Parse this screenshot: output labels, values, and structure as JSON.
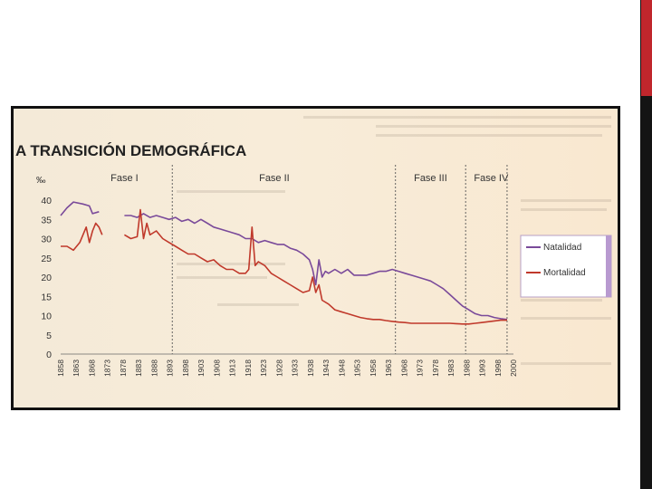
{
  "slide": {
    "accent_color": "#c0262c",
    "bar_color": "#141414"
  },
  "chart_data": {
    "type": "line",
    "title": "A TRANSICIÓN DEMOGRÁFICA",
    "ylabel": "‰",
    "ylim": [
      0,
      40
    ],
    "yticks": [
      "0",
      "5",
      "10",
      "15",
      "20",
      "25",
      "30",
      "35",
      "40"
    ],
    "xlim": [
      1858,
      2000
    ],
    "xticks": [
      "1858",
      "1863",
      "1868",
      "1873",
      "1878",
      "1883",
      "1888",
      "1893",
      "1898",
      "1903",
      "1908",
      "1913",
      "1918",
      "1923",
      "1928",
      "1933",
      "1938",
      "1943",
      "1948",
      "1953",
      "1958",
      "1963",
      "1968",
      "1973",
      "1978",
      "1983",
      "1988",
      "1993",
      "1998",
      "2000"
    ],
    "phases": [
      {
        "label": "Fase I",
        "x": 1878
      },
      {
        "label": "Fase II",
        "x": 1925
      },
      {
        "label": "Fase III",
        "x": 1974
      },
      {
        "label": "Fase IV",
        "x": 1993
      }
    ],
    "phase_dividers": [
      1893,
      1963,
      1985,
      1998
    ],
    "grid": false,
    "legend_position": "right",
    "series": [
      {
        "name": "Natalidad",
        "color": "#7a4a9a",
        "segments": [
          [
            [
              1858,
              36
            ],
            [
              1860,
              38
            ],
            [
              1862,
              39.5
            ],
            [
              1865,
              39
            ],
            [
              1867,
              38.5
            ],
            [
              1868,
              36.5
            ],
            [
              1870,
              37
            ]
          ],
          [
            [
              1878,
              36
            ],
            [
              1880,
              36
            ],
            [
              1882,
              35.5
            ],
            [
              1884,
              36.5
            ],
            [
              1886,
              35.5
            ],
            [
              1888,
              36
            ],
            [
              1890,
              35.5
            ],
            [
              1892,
              35
            ],
            [
              1894,
              35.5
            ],
            [
              1896,
              34.5
            ],
            [
              1898,
              35
            ],
            [
              1900,
              34
            ],
            [
              1902,
              35
            ],
            [
              1904,
              34
            ],
            [
              1906,
              33
            ],
            [
              1908,
              32.5
            ],
            [
              1910,
              32
            ],
            [
              1912,
              31.5
            ],
            [
              1914,
              31
            ],
            [
              1916,
              30
            ],
            [
              1918,
              30
            ],
            [
              1920,
              29
            ],
            [
              1922,
              29.5
            ],
            [
              1924,
              29
            ],
            [
              1926,
              28.5
            ],
            [
              1928,
              28.5
            ],
            [
              1930,
              27.5
            ],
            [
              1932,
              27
            ],
            [
              1934,
              26
            ],
            [
              1936,
              24.5
            ],
            [
              1937,
              22
            ],
            [
              1938,
              18
            ],
            [
              1939,
              24.5
            ],
            [
              1940,
              20
            ],
            [
              1941,
              21.5
            ],
            [
              1942,
              21
            ],
            [
              1944,
              22
            ],
            [
              1946,
              21
            ],
            [
              1948,
              22
            ],
            [
              1950,
              20.5
            ],
            [
              1952,
              20.5
            ],
            [
              1954,
              20.5
            ],
            [
              1956,
              21
            ],
            [
              1958,
              21.5
            ],
            [
              1960,
              21.5
            ],
            [
              1962,
              22
            ],
            [
              1964,
              21.5
            ],
            [
              1966,
              21
            ],
            [
              1968,
              20.5
            ],
            [
              1970,
              20
            ],
            [
              1972,
              19.5
            ],
            [
              1974,
              19
            ],
            [
              1976,
              18
            ],
            [
              1978,
              17
            ],
            [
              1980,
              15.5
            ],
            [
              1982,
              14
            ],
            [
              1984,
              12.5
            ],
            [
              1986,
              11.5
            ],
            [
              1988,
              10.5
            ],
            [
              1990,
              10
            ],
            [
              1992,
              10
            ],
            [
              1994,
              9.5
            ],
            [
              1996,
              9.2
            ],
            [
              1998,
              9
            ]
          ]
        ]
      },
      {
        "name": "Mortalidad",
        "color": "#c0392b",
        "segments": [
          [
            [
              1858,
              28
            ],
            [
              1860,
              28
            ],
            [
              1862,
              27
            ],
            [
              1864,
              29
            ],
            [
              1866,
              33
            ],
            [
              1867,
              29
            ],
            [
              1868,
              32
            ],
            [
              1869,
              34
            ],
            [
              1870,
              33
            ],
            [
              1871,
              31
            ]
          ],
          [
            [
              1878,
              31
            ],
            [
              1880,
              30
            ],
            [
              1882,
              30.5
            ],
            [
              1883,
              37.5
            ],
            [
              1884,
              30
            ],
            [
              1885,
              34
            ],
            [
              1886,
              31
            ],
            [
              1888,
              32
            ],
            [
              1890,
              30
            ],
            [
              1892,
              29
            ],
            [
              1894,
              28
            ],
            [
              1896,
              27
            ],
            [
              1898,
              26
            ],
            [
              1900,
              26
            ],
            [
              1902,
              25
            ],
            [
              1904,
              24
            ],
            [
              1906,
              24.5
            ],
            [
              1908,
              23
            ],
            [
              1910,
              22
            ],
            [
              1912,
              22
            ],
            [
              1914,
              21
            ],
            [
              1916,
              21
            ],
            [
              1917,
              22
            ],
            [
              1918,
              33
            ],
            [
              1919,
              23
            ],
            [
              1920,
              24
            ],
            [
              1922,
              23
            ],
            [
              1924,
              21
            ],
            [
              1926,
              20
            ],
            [
              1928,
              19
            ],
            [
              1930,
              18
            ],
            [
              1932,
              17
            ],
            [
              1934,
              16
            ],
            [
              1936,
              16.5
            ],
            [
              1937,
              20
            ],
            [
              1938,
              16
            ],
            [
              1939,
              18
            ],
            [
              1940,
              14
            ],
            [
              1942,
              13
            ],
            [
              1944,
              11.5
            ],
            [
              1946,
              11
            ],
            [
              1948,
              10.5
            ],
            [
              1950,
              10
            ],
            [
              1952,
              9.5
            ],
            [
              1954,
              9.2
            ],
            [
              1956,
              9
            ],
            [
              1958,
              9
            ],
            [
              1960,
              8.7
            ],
            [
              1962,
              8.5
            ],
            [
              1964,
              8.3
            ],
            [
              1966,
              8.2
            ],
            [
              1968,
              8
            ],
            [
              1970,
              8
            ],
            [
              1972,
              8
            ],
            [
              1974,
              8
            ],
            [
              1976,
              8
            ],
            [
              1978,
              8
            ],
            [
              1980,
              8
            ],
            [
              1982,
              7.9
            ],
            [
              1984,
              7.8
            ],
            [
              1986,
              7.8
            ],
            [
              1988,
              8
            ],
            [
              1990,
              8.2
            ],
            [
              1992,
              8.4
            ],
            [
              1994,
              8.6
            ],
            [
              1996,
              8.8
            ],
            [
              1998,
              8.8
            ]
          ]
        ]
      }
    ]
  }
}
